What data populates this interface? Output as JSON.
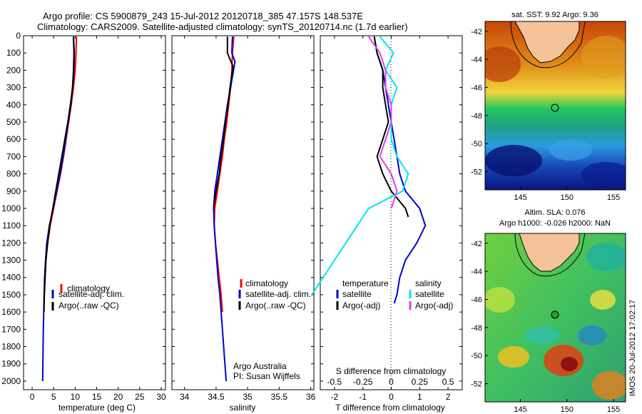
{
  "header": {
    "line1": "Argo profile: CS 5900879_243 15-Jul-2012 20120718_385 47.157S 148.537E",
    "line2": "Climatology: CARS2009. Satellite-adjusted climatology: synTS_20120714.nc (1.7d earlier)"
  },
  "colors": {
    "climatology": "#ff0000",
    "satellite": "#0000cc",
    "argo": "#000000",
    "sal_satellite": "#00e5ee",
    "sal_argo": "#e040e0"
  },
  "chart_data": [
    {
      "type": "line",
      "id": "temperature",
      "xlabel": "temperature (deg C)",
      "ylim": [
        2050,
        0
      ],
      "xlim": [
        -2,
        31
      ],
      "xticks": [
        "0",
        "5",
        "10",
        "15",
        "20",
        "25",
        "30"
      ],
      "yticks": [
        "0",
        "100",
        "200",
        "300",
        "400",
        "500",
        "600",
        "700",
        "800",
        "900",
        "1000",
        "1100",
        "1200",
        "1300",
        "1400",
        "1500",
        "1600",
        "1700",
        "1800",
        "1900",
        "2000"
      ],
      "legend": [
        "climatology",
        "satellite-adj. clim.",
        "Argo(..raw -QC)"
      ],
      "series": [
        {
          "name": "climatology",
          "color": "#ff0000",
          "x": [
            10.3,
            10.2,
            10.0,
            9.6,
            9.1,
            8.5,
            7.9,
            7.3,
            6.6,
            5.8,
            5.0,
            4.2,
            3.6,
            3.2,
            3.0,
            2.8,
            2.75
          ],
          "y": [
            5,
            100,
            200,
            300,
            400,
            500,
            600,
            700,
            800,
            900,
            1000,
            1100,
            1200,
            1300,
            1400,
            1500,
            1600
          ]
        },
        {
          "name": "satellite-adj. clim.",
          "color": "#0000cc",
          "x": [
            9.6,
            9.7,
            9.6,
            9.4,
            9.0,
            8.4,
            7.8,
            7.2,
            6.5,
            5.7,
            4.9,
            4.0,
            3.4,
            3.1,
            2.9,
            2.8,
            2.7,
            2.6,
            2.55,
            2.5,
            2.45
          ],
          "y": [
            5,
            100,
            200,
            300,
            400,
            500,
            600,
            700,
            800,
            900,
            1000,
            1100,
            1200,
            1300,
            1400,
            1500,
            1600,
            1700,
            1800,
            1900,
            2000
          ]
        },
        {
          "name": "Argo(..raw -QC)",
          "color": "#000000",
          "x": [
            9.6,
            9.8,
            9.7,
            9.4,
            8.9,
            8.3,
            7.6,
            6.9,
            6.2,
            5.5,
            4.8,
            4.1,
            3.6,
            3.2,
            3.0,
            2.85,
            2.75
          ],
          "y": [
            5,
            100,
            200,
            300,
            400,
            500,
            600,
            700,
            800,
            900,
            1000,
            1100,
            1200,
            1300,
            1400,
            1500,
            1600
          ]
        }
      ]
    },
    {
      "type": "line",
      "id": "salinity",
      "xlabel": "salinity",
      "ylim": [
        2050,
        0
      ],
      "xlim": [
        33.8,
        36.05
      ],
      "xticks": [
        "34",
        "34.5",
        "35",
        "35.5",
        "36"
      ],
      "legend": [
        "climatology",
        "satellite-adj. clim.",
        "Argo(..raw -QC)"
      ],
      "annotation": [
        "Argo Australia",
        "PI: Susan Wijffels"
      ],
      "series": [
        {
          "name": "climatology",
          "color": "#ff0000",
          "x": [
            34.78,
            34.76,
            34.75,
            34.73,
            34.7,
            34.67,
            34.63,
            34.6,
            34.56,
            34.52,
            34.48,
            34.47,
            34.49,
            34.52,
            34.55,
            34.58,
            34.6
          ],
          "y": [
            5,
            100,
            200,
            300,
            400,
            500,
            600,
            700,
            800,
            900,
            1000,
            1100,
            1200,
            1300,
            1400,
            1500,
            1600
          ]
        },
        {
          "name": "satellite-adj. clim.",
          "color": "#0000cc",
          "x": [
            34.76,
            34.75,
            34.8,
            34.73,
            34.68,
            34.64,
            34.6,
            34.56,
            34.52,
            34.48,
            34.46,
            34.47,
            34.49,
            34.51,
            34.53,
            34.56,
            34.58,
            34.6,
            34.62,
            34.64,
            34.66
          ],
          "y": [
            5,
            100,
            150,
            300,
            400,
            500,
            600,
            700,
            800,
            900,
            1000,
            1100,
            1200,
            1300,
            1400,
            1500,
            1600,
            1700,
            1800,
            1900,
            2000
          ]
        },
        {
          "name": "Argo(..raw -QC)",
          "color": "#000000",
          "x": [
            34.68,
            34.68,
            34.77,
            34.72,
            34.69,
            34.65,
            34.62,
            34.58,
            34.55,
            34.5,
            34.46
          ],
          "y": [
            5,
            100,
            180,
            300,
            400,
            500,
            600,
            700,
            800,
            900,
            1000
          ]
        }
      ]
    },
    {
      "type": "line",
      "id": "difference",
      "xlabel": "T difference from climatology",
      "xlabel2": "S difference from climatology",
      "ylim": [
        2050,
        0
      ],
      "xlim": [
        -2.5,
        2.5
      ],
      "xticks": [
        "-2",
        "-1",
        "0",
        "1",
        "2"
      ],
      "xticks_sal": [
        "-0.5",
        "-0.25",
        "0",
        "0.25",
        "0.5"
      ],
      "legend_headings": [
        "temperature",
        "salinity"
      ],
      "legend": [
        "satellite",
        "Argo(-adj)",
        "satellite",
        "Argo(-adj)"
      ],
      "series": [
        {
          "name": "temperature satellite",
          "color": "#0000cc",
          "x": [
            -0.6,
            -0.5,
            -0.3,
            -0.2,
            -0.1,
            0.0,
            0.1,
            0.2,
            0.3,
            0.5,
            1.0,
            1.2,
            0.9,
            0.5,
            0.3,
            0.2,
            0.1
          ],
          "y": [
            5,
            100,
            200,
            300,
            400,
            500,
            600,
            700,
            800,
            900,
            1000,
            1100,
            1200,
            1300,
            1400,
            1500,
            1550
          ]
        },
        {
          "name": "temperature Argo(-adj)",
          "color": "#000000",
          "x": [
            -0.6,
            -0.5,
            -0.3,
            -0.3,
            -0.2,
            -0.1,
            -0.3,
            -0.5,
            -0.3,
            0.0,
            0.5,
            0.6
          ],
          "y": [
            5,
            100,
            200,
            300,
            400,
            500,
            600,
            700,
            800,
            900,
            1000,
            1050
          ]
        },
        {
          "name": "salinity satellite",
          "color": "#00e5ee",
          "x": [
            -0.1,
            0.02,
            -0.05,
            0.05,
            0.0,
            0.0,
            0.0,
            0.05,
            0.15,
            0.1,
            -0.2,
            -0.3,
            -0.4,
            -0.5,
            -0.6,
            -0.7
          ],
          "y": [
            5,
            100,
            200,
            300,
            400,
            500,
            600,
            700,
            800,
            900,
            1000,
            1100,
            1200,
            1300,
            1400,
            1500
          ]
        },
        {
          "name": "salinity Argo(-adj)",
          "color": "#e040e0",
          "x": [
            -0.2,
            -0.1,
            -0.05,
            -0.05,
            0.0,
            0.0,
            -0.05,
            -0.1,
            0.0,
            0.05,
            0.0
          ],
          "y": [
            5,
            100,
            200,
            300,
            400,
            500,
            600,
            700,
            800,
            900,
            1000
          ]
        }
      ]
    }
  ],
  "map_top": {
    "title": "sat. SST: 9.92 Argo: 9.36",
    "yticks": [
      "-42",
      "-44",
      "-46",
      "-48",
      "-50",
      "-52"
    ],
    "xticks": [
      "145",
      "150",
      "155"
    ]
  },
  "map_bottom": {
    "title1": "Altim. SLA: 0.076",
    "title2": "Argo h1000: -0.026 h2000: NaN",
    "yticks": [
      "-42",
      "-44",
      "-46",
      "-48",
      "-50",
      "-52"
    ],
    "xticks": [
      "145",
      "150",
      "155"
    ],
    "stamp": "IMOS 20-Jul-2012 17:02:17"
  }
}
